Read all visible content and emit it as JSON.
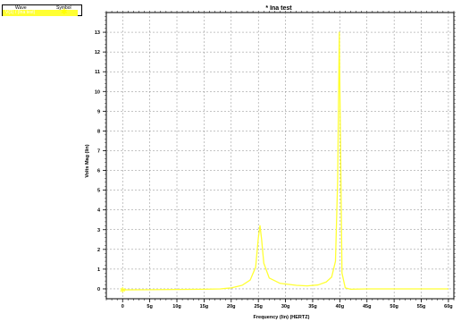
{
  "legend": {
    "wave_header": "Wave",
    "symbol_header": "Symbol",
    "entries": [
      {
        "name": "V(1)  /  (Ina test)",
        "symbol": "✱",
        "color": "#ffff00"
      }
    ]
  },
  "chart_data": {
    "type": "line",
    "title": "* Ina test",
    "xlabel": "Frequency (lin) (HERTZ)",
    "ylabel": "Volts Mag (lin)",
    "xlim": [
      -3,
      61
    ],
    "ylim": [
      -0.5,
      14.0
    ],
    "x_ticks": [
      0,
      5,
      10,
      15,
      20,
      25,
      30,
      35,
      40,
      45,
      50,
      55,
      60
    ],
    "x_tick_labels": [
      "0",
      "5g",
      "10g",
      "15g",
      "20g",
      "25g",
      "30g",
      "35g",
      "40g",
      "45g",
      "50g",
      "55g",
      "60g"
    ],
    "y_ticks": [
      0,
      1,
      2,
      3,
      4,
      5,
      6,
      7,
      8,
      9,
      10,
      11,
      12,
      13
    ],
    "y_tick_labels": [
      "0",
      "1",
      "2",
      "3",
      "4",
      "5",
      "6",
      "7",
      "8",
      "9",
      "10",
      "11",
      "12",
      "13"
    ],
    "grid": true,
    "line_color": "#ffff33",
    "series": [
      {
        "x": [
          0,
          5,
          10,
          15,
          18,
          20,
          22,
          23.5,
          24.5,
          25.0,
          25.3,
          25.6,
          26.0,
          27.0,
          29,
          32,
          34,
          36,
          37.5,
          38.5,
          39.2,
          39.6,
          39.9,
          40.1,
          40.4,
          41,
          42,
          45,
          50,
          55,
          60
        ],
        "y": [
          -0.05,
          -0.04,
          -0.03,
          -0.02,
          0.0,
          0.05,
          0.18,
          0.45,
          1.1,
          2.6,
          3.2,
          2.5,
          1.3,
          0.55,
          0.28,
          0.18,
          0.15,
          0.2,
          0.35,
          0.6,
          1.4,
          5.5,
          13.0,
          8.0,
          0.8,
          0.05,
          -0.02,
          0.0,
          0.0,
          0.0,
          0.0
        ]
      }
    ]
  }
}
